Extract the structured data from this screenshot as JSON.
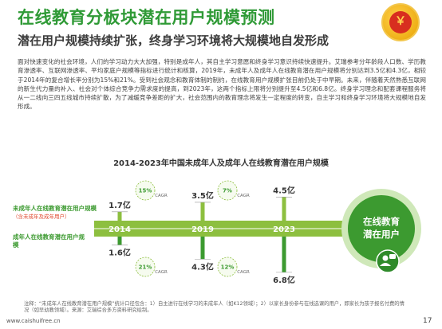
{
  "header": {
    "title": "在线教育分板块潜在用户规模预测",
    "subtitle": "潜在用户规模持续扩张，终身学习环境将大规模地自发形成"
  },
  "body_text": "面对快速变化的社会环境，人们的学习动力大大加强，特别是成年人，其自主学习意愿和终身学习意识持续快速提升。艾瑞参考分年龄段人口数、学历教育渗透率、互联网渗透率、平均家庭户规模等指标进行统计和核算，2019年，未成年人及成年人在线教育潜在用户规模将分别达到3.5亿和4.3亿，相较于2014年的复合增长率分别为15%和21%。受到社会观念和教育体制的制约，在线教育用户规模扩张目前仍处于中早期。未来，伴随着天然熟悉互联网的新生代力量的补入、社会对个体综合竞争力需求度的提高，到2023年，这两个指标上限将分别提升至4.5亿和6.8亿。终身学习理念和配套课程服务将从一二线向三四五线城市持续扩散，为了减缓竞争差距的扩大，社会范围内的教育理念将发生一定程度的转变，自主学习和终身学习环境将大规模地自发形成。",
  "chart_data": {
    "type": "bar",
    "title": "2014-2023年中国未成年人及成年人在线教育潜在用户规模",
    "categories": [
      "2014",
      "2019",
      "2023"
    ],
    "series": [
      {
        "name": "未成年人在线教育潜在用户规模",
        "note": "（含未成年及成年用户）",
        "color": "#8dbf3f",
        "values": [
          1.7,
          3.5,
          4.5
        ],
        "labels": [
          "1.7亿",
          "3.5亿",
          "4.5亿"
        ],
        "cagr": [
          "15%",
          "7%"
        ]
      },
      {
        "name": "成年人在线教育潜在用户规模",
        "color": "#3c9a30",
        "values": [
          1.6,
          4.3,
          6.8
        ],
        "labels": [
          "1.6亿",
          "4.3亿",
          "6.8亿"
        ],
        "cagr": [
          "21%",
          "12%"
        ]
      }
    ],
    "cagr_label": "CAGR",
    "end_label": [
      "在线教育",
      "潜在用户"
    ],
    "colors": {
      "timeline": "#8dbf3f",
      "circle": "#3c9a30",
      "circle_ring": "#cfe8b9",
      "cagr_circle": "#f6fbef",
      "cagr_text": "#3c9a30"
    }
  },
  "footnote": "注释：“未成年人在线教育潜在用户规模”统计口径包含：1）自主进行在线学习的未成年人（如K12领域）；2）以家长身份参与在线选课的用户，即家长为孩子报名付费的情况（如早幼教领域）。来源：艾瑞综合多方资料研究绘制。",
  "footer": {
    "source": "www.caishuifree.cn",
    "page": "17"
  }
}
